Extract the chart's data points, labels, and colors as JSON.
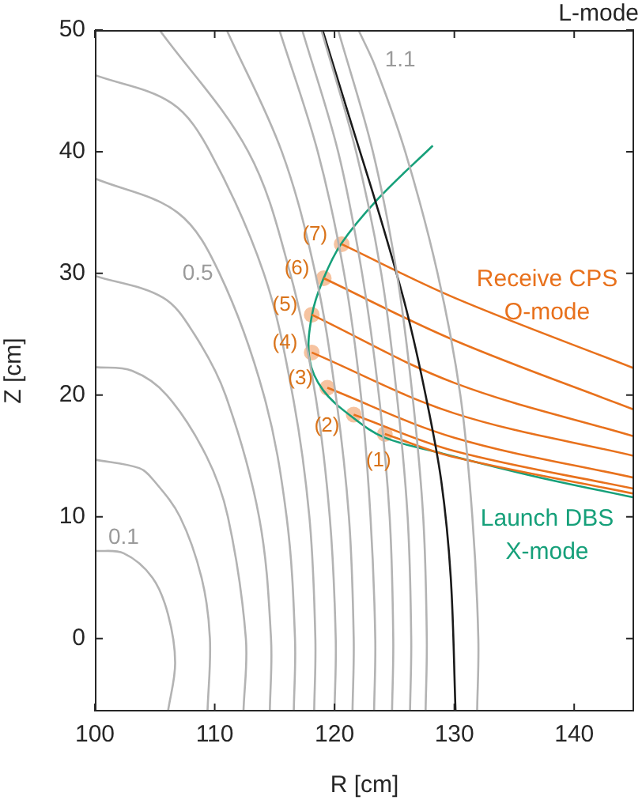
{
  "chart_data": {
    "type": "line",
    "xlabel": "R [cm]",
    "ylabel": "Z [cm]",
    "xlim": [
      100,
      145
    ],
    "ylim": [
      -6,
      50
    ],
    "xticks": [
      100,
      110,
      120,
      130,
      140
    ],
    "yticks": [
      0,
      10,
      20,
      30,
      40,
      50
    ],
    "grid": false,
    "legend": false,
    "annotations": [
      "L-mode",
      {
        "text": "0.1",
        "x": 102.4,
        "y": 7
      },
      {
        "text": "0.5",
        "x": 110.4,
        "y": 30
      },
      {
        "text": "1.1",
        "x": 123.4,
        "y": 47
      },
      {
        "text": "(1)",
        "x": 124.2,
        "y": 16.8
      },
      {
        "text": "(2)",
        "x": 121.6,
        "y": 18.4
      },
      {
        "text": "(3)",
        "x": 119.4,
        "y": 20.6
      },
      {
        "text": "(4)",
        "x": 118.1,
        "y": 23.5
      },
      {
        "text": "(5)",
        "x": 118.1,
        "y": 26.6
      },
      {
        "text": "(6)",
        "x": 119.1,
        "y": 29.6
      },
      {
        "text": "(7)",
        "x": 120.6,
        "y": 32.4
      }
    ],
    "series": [
      {
        "color": "#b3b3b3",
        "x": [
          106.1,
          106.7,
          106.1,
          104.8,
          102.4,
          100
        ],
        "values": [
          -6,
          -2,
          2,
          5,
          7,
          7.2
        ]
      },
      {
        "color": "#b3b3b3",
        "x": [
          109.4,
          109.6,
          108.9,
          107.1,
          104.9,
          103.7,
          100
        ],
        "values": [
          -6,
          0,
          5,
          10,
          13,
          14,
          14.7
        ]
      },
      {
        "color": "#b3b3b3",
        "x": [
          112.4,
          112.6,
          111.1,
          109.3,
          106,
          103.1,
          100
        ],
        "values": [
          -6,
          0,
          10,
          15,
          20,
          22,
          22.3
        ]
      },
      {
        "color": "#b3b3b3",
        "x": [
          114.6,
          114.7,
          113.7,
          110.9,
          108.3,
          105.7,
          100
        ],
        "values": [
          -6,
          0,
          10,
          20,
          25,
          28,
          29.8
        ]
      },
      {
        "color": "#b3b3b3",
        "x": [
          116.6,
          116.7,
          116,
          114.1,
          110.4,
          106.9,
          100
        ],
        "values": [
          -6,
          0,
          10,
          20,
          30,
          35,
          37.8
        ]
      },
      {
        "color": "#b3b3b3",
        "x": [
          118.3,
          118.4,
          117.9,
          116.5,
          114.1,
          109.6,
          106.4,
          100
        ],
        "values": [
          -6,
          0,
          10,
          20,
          30,
          40,
          44,
          46.3
        ]
      },
      {
        "color": "#b3b3b3",
        "x": [
          120,
          120.1,
          119.6,
          118.4,
          116.3,
          112.8,
          105.4
        ],
        "values": [
          -6,
          0,
          10,
          20,
          30,
          40,
          50
        ]
      },
      {
        "color": "#b3b3b3",
        "x": [
          121.5,
          121.6,
          121.2,
          120.1,
          118.4,
          115.6,
          111
        ],
        "values": [
          -6,
          0,
          10,
          20,
          30,
          40,
          50
        ]
      },
      {
        "color": "#b3b3b3",
        "x": [
          123.3,
          123.4,
          123,
          122.2,
          120.8,
          118.6,
          115.4
        ],
        "values": [
          -6,
          0,
          10,
          20,
          30,
          40,
          50
        ]
      },
      {
        "color": "#b3b3b3",
        "x": [
          124.8,
          124.9,
          124.6,
          123.7,
          122.3,
          120.3,
          117.3
        ],
        "values": [
          -6,
          0,
          10,
          20,
          30,
          40,
          50
        ]
      },
      {
        "color": "#b3b3b3",
        "x": [
          126.3,
          126.4,
          126.1,
          125.2,
          123.9,
          121.8,
          118.9
        ],
        "values": [
          -6,
          0,
          10,
          20,
          30,
          40,
          50
        ]
      },
      {
        "color": "#b3b3b3",
        "x": [
          127.6,
          127.7,
          127.4,
          126.5,
          125.2,
          123.2,
          120.3
        ],
        "values": [
          -6,
          0,
          10,
          20,
          30,
          40,
          50
        ]
      },
      {
        "color": "#b3b3b3",
        "x": [
          131.9,
          132,
          131.5,
          130.5,
          128.6,
          125.9,
          123.4,
          122
        ],
        "values": [
          -6,
          0,
          10,
          20,
          30,
          40,
          47,
          50
        ]
      },
      {
        "color": "#1a1a1a",
        "x": [
          119,
          121.5,
          124,
          126,
          127.6,
          128.9,
          129.7,
          130.1
        ],
        "values": [
          50,
          42,
          34,
          27,
          20,
          13,
          5,
          -6
        ]
      },
      {
        "color": "#e8711c",
        "x": [
          124.2,
          130,
          145
        ],
        "values": [
          16.8,
          14.9,
          11.9
        ]
      },
      {
        "color": "#e8711c",
        "x": [
          121.6,
          130,
          145
        ],
        "values": [
          18.4,
          15.4,
          12.3
        ]
      },
      {
        "color": "#e8711c",
        "x": [
          119.4,
          130,
          145
        ],
        "values": [
          20.6,
          16.5,
          13.2
        ]
      },
      {
        "color": "#e8711c",
        "x": [
          118.1,
          130,
          145
        ],
        "values": [
          23.5,
          18.5,
          15
        ]
      },
      {
        "color": "#e8711c",
        "x": [
          118.1,
          130,
          145
        ],
        "values": [
          26.6,
          21,
          16.6
        ]
      },
      {
        "color": "#e8711c",
        "x": [
          119.1,
          130,
          145
        ],
        "values": [
          29.6,
          24.5,
          18.8
        ]
      },
      {
        "name": "Receive CPS O-mode",
        "color": "#e8711c",
        "x": [
          120.6,
          130,
          145
        ],
        "values": [
          32.4,
          28,
          22.2
        ]
      },
      {
        "name": "Launch DBS X-mode",
        "color": "#16a07a",
        "x": [
          128.2,
          123.7,
          120.6,
          119.05,
          118.1,
          117.9,
          119.05,
          121.6,
          124.2,
          129,
          136.8,
          144.9
        ],
        "values": [
          40.5,
          36.2,
          32.5,
          29.5,
          26.5,
          23,
          20.4,
          18.1,
          16.5,
          15.2,
          13.3,
          11.6
        ]
      },
      {
        "type": "scatter",
        "marker": "circle",
        "color": "#f6c3a0",
        "x": [
          124.2,
          121.6,
          119.4,
          118.1,
          118.1,
          119.1,
          120.6
        ],
        "values": [
          16.8,
          18.4,
          20.6,
          23.5,
          26.6,
          29.6,
          32.4
        ]
      }
    ]
  }
}
